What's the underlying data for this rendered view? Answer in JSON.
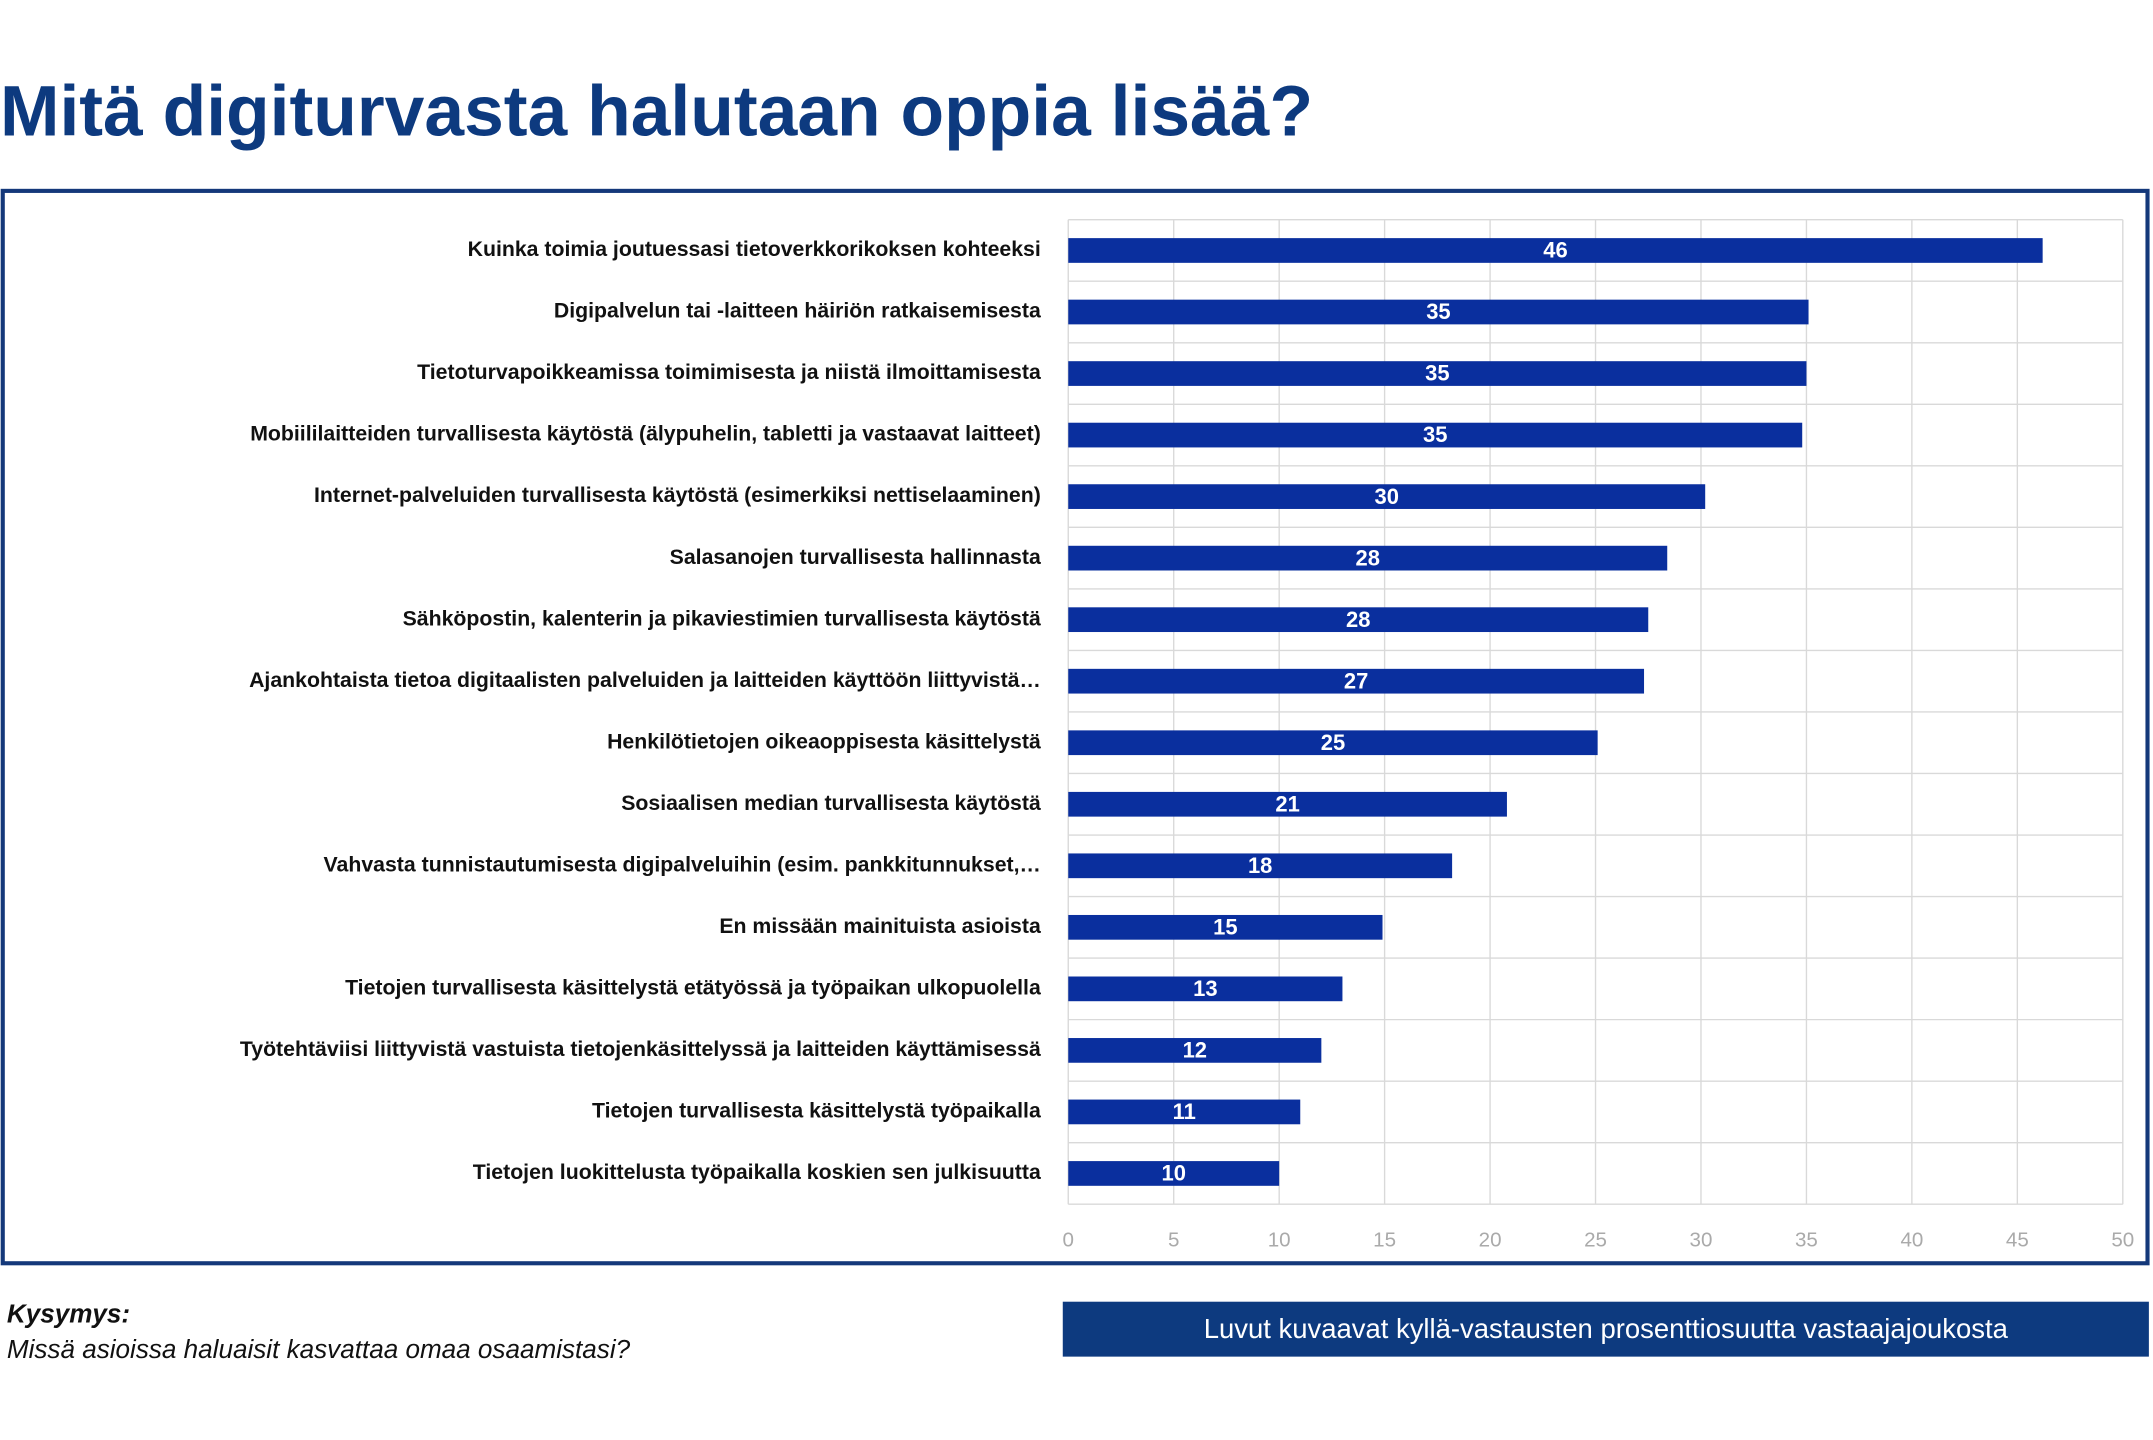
{
  "chart_data": {
    "type": "bar",
    "orientation": "horizontal",
    "title": "Mitä digiturvasta halutaan oppia lisää?",
    "categories": [
      "Kuinka toimia joutuessasi tietoverkkorikoksen kohteeksi",
      "Digipalvelun tai -laitteen häiriön ratkaisemisesta",
      "Tietoturvapoikkeamissa toimimisesta ja niistä ilmoittamisesta",
      "Mobiililaitteiden turvallisesta käytöstä (älypuhelin, tabletti ja vastaavat laitteet)",
      "Internet-palveluiden turvallisesta käytöstä (esimerkiksi nettiselaaminen)",
      "Salasanojen turvallisesta hallinnasta",
      "Sähköpostin, kalenterin ja pikaviestimien turvallisesta käytöstä",
      "Ajankohtaista tietoa digitaalisten palveluiden ja laitteiden käyttöön liittyvistä…",
      "Henkilötietojen oikeaoppisesta käsittelystä",
      "Sosiaalisen median turvallisesta käytöstä",
      "Vahvasta tunnistautumisesta digipalveluihin (esim. pankkitunnukset,…",
      "En missään mainituista asioista",
      "Tietojen turvallisesta käsittelystä etätyössä ja työpaikan ulkopuolella",
      "Työtehtäviisi liittyvistä vastuista tietojenkäsittelyssä ja laitteiden käyttämisessä",
      "Tietojen turvallisesta käsittelystä työpaikalla",
      "Tietojen luokittelusta työpaikalla koskien sen julkisuutta"
    ],
    "values": [
      46.2,
      35.1,
      35.0,
      34.8,
      30.2,
      28.4,
      27.5,
      27.3,
      25.1,
      20.8,
      18.2,
      14.9,
      13.0,
      12.0,
      11.0,
      10.0
    ],
    "value_labels": [
      "46",
      "35",
      "35",
      "35",
      "30",
      "28",
      "28",
      "27",
      "25",
      "21",
      "18",
      "15",
      "13",
      "12",
      "11",
      "10"
    ],
    "color": "#0a2f9e",
    "xlim": [
      0,
      50
    ],
    "xticks": [
      0,
      5,
      10,
      15,
      20,
      25,
      30,
      35,
      40,
      45,
      50
    ],
    "grid": true
  },
  "question_label": "Kysymys:",
  "question": "Missä asioissa haluaisit kasvattaa omaa osaamistasi?",
  "note": "Luvut kuvaavat kyllä-vastausten prosenttiosuutta vastaajajoukosta"
}
